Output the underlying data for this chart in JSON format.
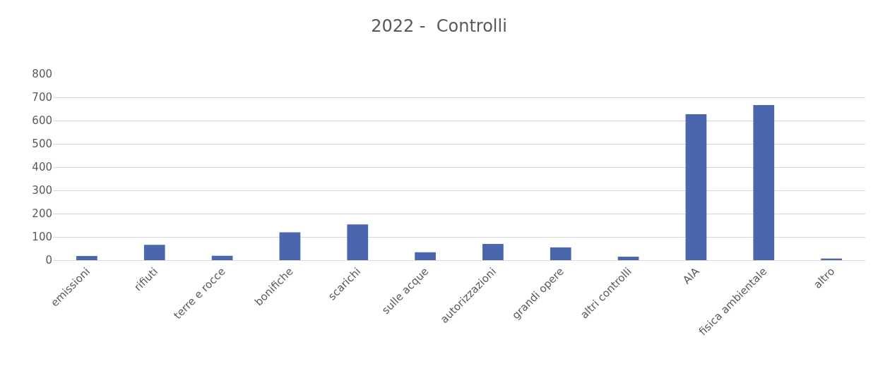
{
  "chart_data": {
    "type": "bar",
    "title": "2022 -  Controlli",
    "categories": [
      "emissioni",
      "rifiuti",
      "terre e rocce",
      "bonifiche",
      "scarichi",
      "sulle acque",
      "autorizzazioni",
      "grandi opere",
      "altri controlli",
      "AIA",
      "fisica ambientale",
      "altro"
    ],
    "values": [
      18,
      66,
      19,
      120,
      154,
      34,
      70,
      55,
      15,
      627,
      667,
      7
    ],
    "color": "#4a66ac",
    "ylim": [
      0,
      800
    ],
    "yticks": [
      0,
      100,
      200,
      300,
      400,
      500,
      600,
      700,
      800
    ],
    "grid": "y",
    "legend": false
  }
}
